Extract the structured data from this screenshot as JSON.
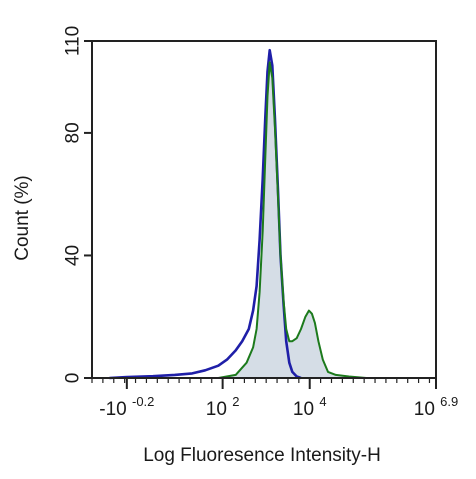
{
  "chart_data": {
    "type": "area",
    "xlabel": "Log Fluoresence Intensity-H",
    "ylabel": "Count  (%)",
    "xscale": "biexponential-log",
    "xlim": [
      -1.0,
      6.9
    ],
    "ylim": [
      0,
      110
    ],
    "grid": false,
    "legend": "none",
    "y_ticks": [
      "0",
      "40",
      "80",
      "110"
    ],
    "x_ticks": [
      {
        "x": -0.2,
        "base": "-10",
        "exp": "-0.2"
      },
      {
        "x": 2,
        "base": "10",
        "exp": "2"
      },
      {
        "x": 4,
        "base": "10",
        "exp": "4"
      },
      {
        "x": 6.9,
        "base": "10",
        "exp": "6.9"
      }
    ],
    "colors": {
      "blue_series": "#1f1fa8",
      "green_series": "#1c7a1c",
      "fill": "#c7d2de",
      "axis": "#222222"
    },
    "series": [
      {
        "color": "#1f1fa8",
        "filled": false,
        "x": [
          -0.6,
          -0.2,
          0.4,
          0.9,
          1.3,
          1.6,
          1.9,
          2.1,
          2.3,
          2.45,
          2.6,
          2.7,
          2.78,
          2.85,
          2.92,
          2.98,
          3.03,
          3.08,
          3.14,
          3.2,
          3.27,
          3.33,
          3.4,
          3.46,
          3.53,
          3.6,
          3.7,
          3.8
        ],
        "values": [
          0,
          0.3,
          0.6,
          1,
          1.5,
          2.5,
          4,
          6,
          9,
          12,
          16,
          22,
          30,
          45,
          65,
          85,
          100,
          107,
          102,
          85,
          62,
          40,
          24,
          12,
          5,
          2,
          0.5,
          0
        ]
      },
      {
        "color": "#1c7a1c",
        "filled": true,
        "x": [
          1.9,
          2.3,
          2.55,
          2.7,
          2.78,
          2.85,
          2.92,
          2.98,
          3.03,
          3.08,
          3.14,
          3.2,
          3.27,
          3.33,
          3.4,
          3.46,
          3.53,
          3.6,
          3.7,
          3.8,
          3.9,
          3.98,
          4.05,
          4.12,
          4.2,
          4.3,
          4.42,
          4.6,
          4.9,
          5.3
        ],
        "values": [
          0,
          1,
          5,
          10,
          16,
          28,
          48,
          72,
          92,
          103,
          98,
          82,
          60,
          40,
          25,
          16,
          12,
          12,
          13,
          16,
          20,
          22,
          21,
          18,
          12,
          6,
          2,
          1,
          0.5,
          0
        ]
      }
    ]
  }
}
